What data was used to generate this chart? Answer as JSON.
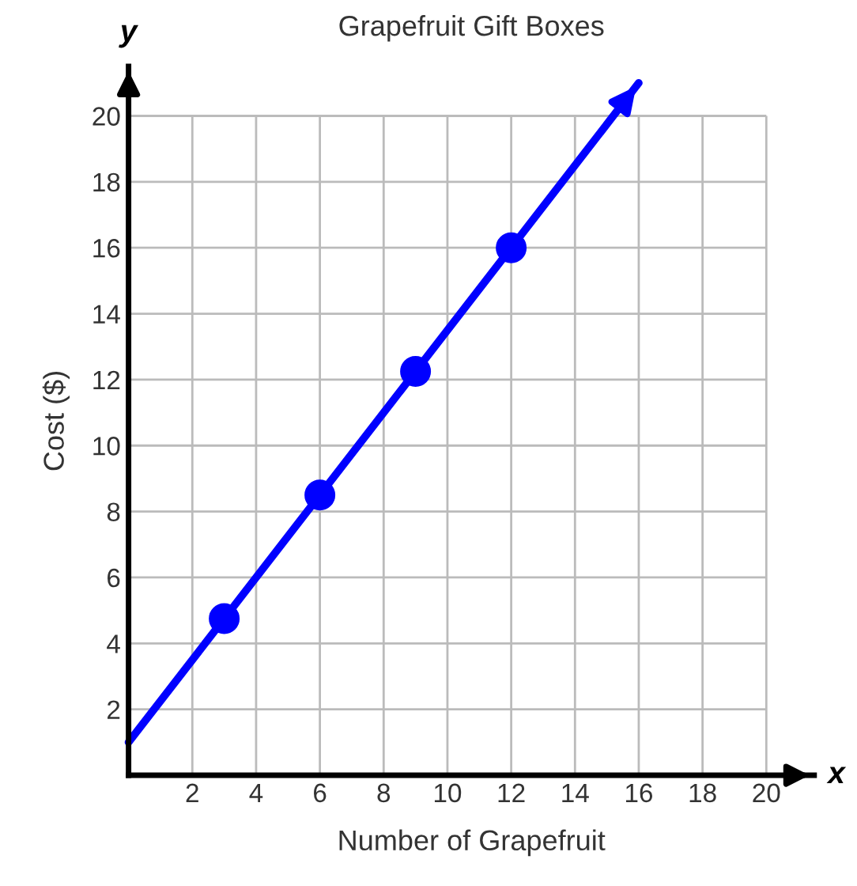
{
  "chart_data": {
    "type": "line",
    "title": "Grapefruit Gift Boxes",
    "xlabel": "Number of Grapefruit",
    "ylabel": "Cost ($)",
    "series": [
      {
        "color": "#0000ff",
        "x": [
          0,
          16
        ],
        "values": [
          1,
          21
        ],
        "marker": "none"
      },
      {
        "type": "scatter",
        "color": "#0000ff",
        "x": [
          3,
          6,
          9,
          12
        ],
        "values": [
          4.75,
          8.5,
          12.25,
          16
        ],
        "marker": "circle"
      }
    ],
    "xlim": [
      0,
      21.5
    ],
    "ylim": [
      0,
      21.5
    ],
    "xticks": [
      2,
      4,
      6,
      8,
      10,
      12,
      14,
      16,
      18,
      20
    ],
    "yticks": [
      2,
      4,
      6,
      8,
      10,
      12,
      14,
      16,
      18,
      20
    ],
    "grid": true,
    "annotations": [
      "x",
      "y"
    ]
  }
}
